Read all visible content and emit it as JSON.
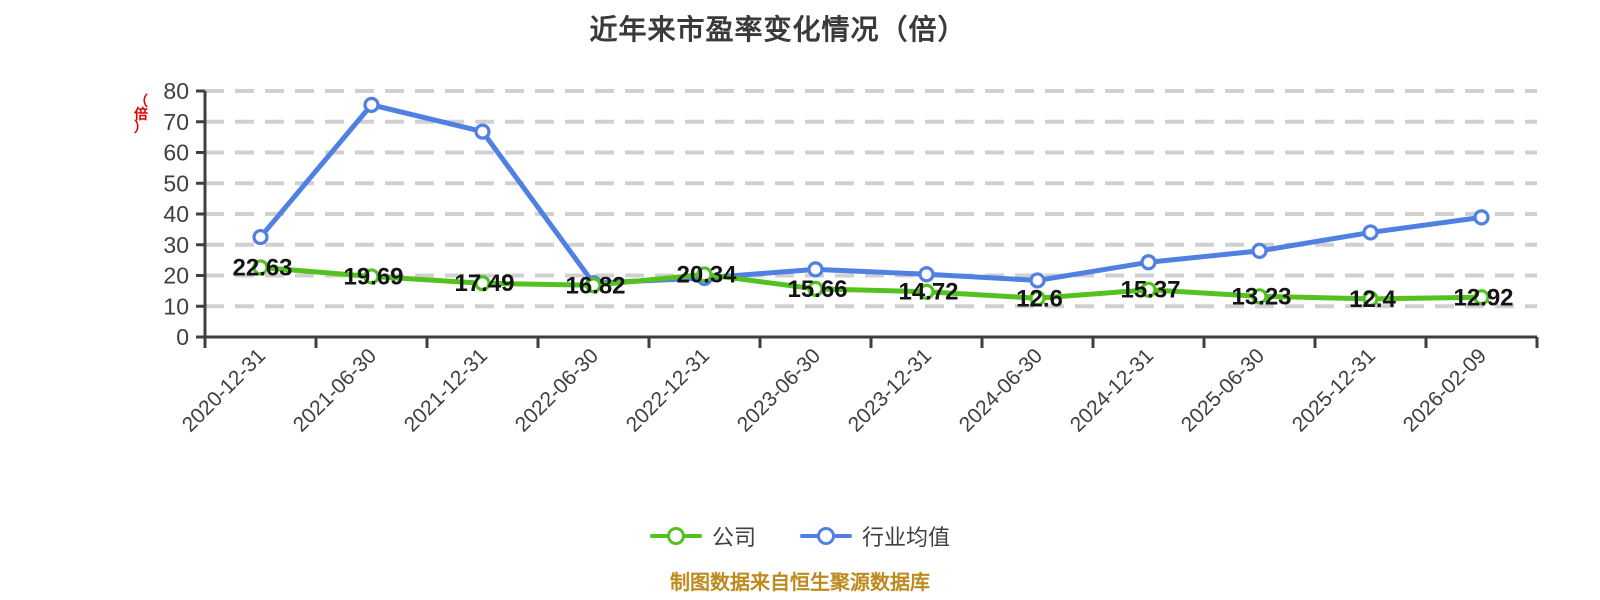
{
  "title": "近年来市盈率变化情况（倍）",
  "footer": "制图数据来自恒生聚源数据库",
  "legend": {
    "company": "公司",
    "industry": "行业均值"
  },
  "colors": {
    "company_series": "#53c21f",
    "industry_series": "#4f80e2",
    "value_label": "#141414",
    "axis": "#3f3f3f",
    "tick_label": "#3f3f3f",
    "gridline": "#d0d0d0",
    "y_unit_label": "#e60000",
    "footer_text": "#bd8a1e",
    "marker_fill": "#ffffff"
  },
  "chart_data": {
    "type": "line",
    "title": "近年来市盈率变化情况（倍）",
    "y_unit_label": "（倍）",
    "categories": [
      "2020-12-31",
      "2021-06-30",
      "2021-12-31",
      "2022-06-30",
      "2022-12-31",
      "2023-06-30",
      "2023-12-31",
      "2024-06-30",
      "2024-12-31",
      "2025-06-30",
      "2025-12-31",
      "2026-02-09"
    ],
    "series": [
      {
        "name": "公司",
        "values": [
          22.63,
          19.69,
          17.49,
          16.82,
          20.34,
          15.66,
          14.72,
          12.6,
          15.37,
          13.23,
          12.4,
          12.92
        ],
        "point_labels": [
          "22.63",
          "19.69",
          "17.49",
          "16.82",
          "20.34",
          "15.66",
          "14.72",
          "12.6",
          "15.37",
          "13.23",
          "12.4",
          "12.92"
        ],
        "show_point_labels": true
      },
      {
        "name": "行业均值",
        "values": [
          32.5,
          75.5,
          66.8,
          17.5,
          19.2,
          22.0,
          20.4,
          18.4,
          24.3,
          28.0,
          34.0,
          38.9
        ],
        "show_point_labels": false,
        "note_values_estimated_from_pixels": true
      }
    ],
    "ylim": [
      0,
      80
    ],
    "ytick_step": 10,
    "yticks": [
      0,
      10,
      20,
      30,
      40,
      50,
      60,
      70,
      80
    ],
    "grid": "horizontal-dashed",
    "x_label_rotation_deg": 45,
    "legend_position": "bottom"
  }
}
